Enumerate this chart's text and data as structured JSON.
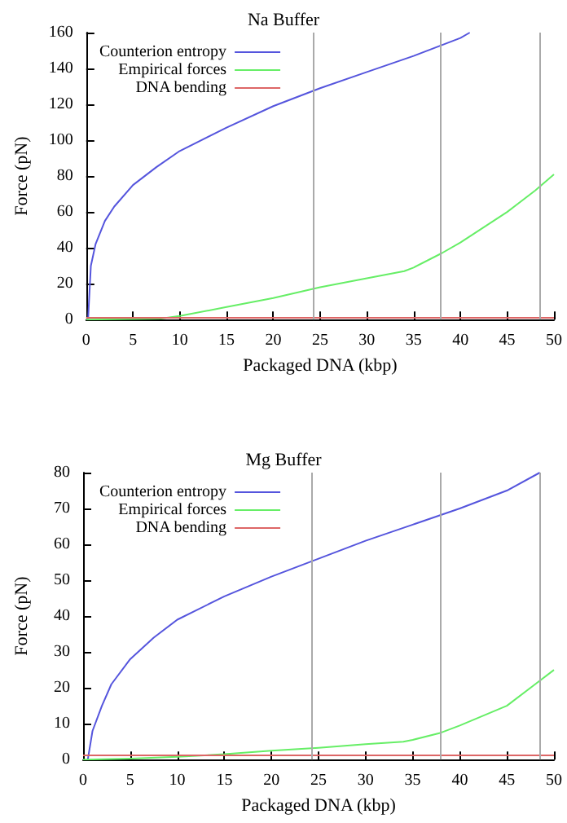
{
  "chart_data": [
    {
      "type": "line",
      "title": "Na Buffer",
      "xlabel": "Packaged DNA (kbp)",
      "ylabel": "Force (pN)",
      "xlim": [
        0,
        50
      ],
      "xticks": [
        0,
        5,
        10,
        15,
        20,
        25,
        30,
        35,
        40,
        45,
        50
      ],
      "ylim": [
        0,
        160
      ],
      "yticks": [
        0,
        20,
        40,
        60,
        80,
        100,
        120,
        140,
        160
      ],
      "grid": false,
      "legend": "top left",
      "marker": "none",
      "line_style": "solid",
      "ref_lines": [
        {
          "axis": "x",
          "value": 24.3,
          "color": "#aaaaaa"
        },
        {
          "axis": "x",
          "value": 37.9,
          "color": "#aaaaaa"
        },
        {
          "axis": "x",
          "value": 48.5,
          "color": "#aaaaaa"
        }
      ],
      "series": [
        {
          "name": "Counterion entropy",
          "color": "#5555dd",
          "x": [
            0.2,
            0.5,
            1,
            2,
            3,
            5,
            7.5,
            10,
            15,
            20,
            25,
            30,
            35,
            40,
            41
          ],
          "values": [
            0,
            30,
            42,
            55,
            63,
            75,
            85,
            94,
            107,
            119,
            129,
            138,
            147,
            157,
            160
          ]
        },
        {
          "name": "Empirical forces",
          "color": "#66ee66",
          "x": [
            0,
            8,
            10,
            15,
            20,
            25,
            30,
            34,
            35,
            38,
            40,
            45,
            48,
            50
          ],
          "values": [
            0,
            0.5,
            2,
            7,
            12,
            18,
            23,
            27,
            29,
            37,
            43,
            60,
            72,
            81
          ]
        },
        {
          "name": "DNA bending",
          "color": "#dd6666",
          "x": [
            0,
            50
          ],
          "values": [
            1,
            1
          ]
        }
      ]
    },
    {
      "type": "line",
      "title": "Mg Buffer",
      "xlabel": "Packaged DNA (kbp)",
      "ylabel": "Force (pN)",
      "xlim": [
        0,
        50
      ],
      "xticks": [
        0,
        5,
        10,
        15,
        20,
        25,
        30,
        35,
        40,
        45,
        50
      ],
      "ylim": [
        0,
        80
      ],
      "yticks": [
        0,
        10,
        20,
        30,
        40,
        50,
        60,
        70,
        80
      ],
      "grid": false,
      "legend": "top left",
      "marker": "none",
      "line_style": "solid",
      "ref_lines": [
        {
          "axis": "x",
          "value": 24.3,
          "color": "#aaaaaa"
        },
        {
          "axis": "x",
          "value": 37.9,
          "color": "#aaaaaa"
        },
        {
          "axis": "x",
          "value": 48.5,
          "color": "#aaaaaa"
        }
      ],
      "series": [
        {
          "name": "Counterion entropy",
          "color": "#5555dd",
          "x": [
            0.5,
            1,
            2,
            3,
            5,
            7.5,
            10,
            15,
            20,
            25,
            30,
            35,
            40,
            45,
            48.5
          ],
          "values": [
            0,
            8,
            15,
            21,
            28,
            34,
            39,
            45.5,
            51,
            56,
            61,
            65.5,
            70,
            75,
            80
          ]
        },
        {
          "name": "Empirical forces",
          "color": "#66ee66",
          "x": [
            0,
            5,
            10,
            15,
            20,
            25,
            30,
            34,
            35,
            38,
            40,
            45,
            48,
            50
          ],
          "values": [
            0,
            0.3,
            0.8,
            1.5,
            2.5,
            3.3,
            4.3,
            5,
            5.5,
            7.5,
            9.5,
            15,
            21,
            25
          ]
        },
        {
          "name": "DNA bending",
          "color": "#dd6666",
          "x": [
            0,
            50
          ],
          "values": [
            1.2,
            1.2
          ]
        }
      ]
    }
  ]
}
